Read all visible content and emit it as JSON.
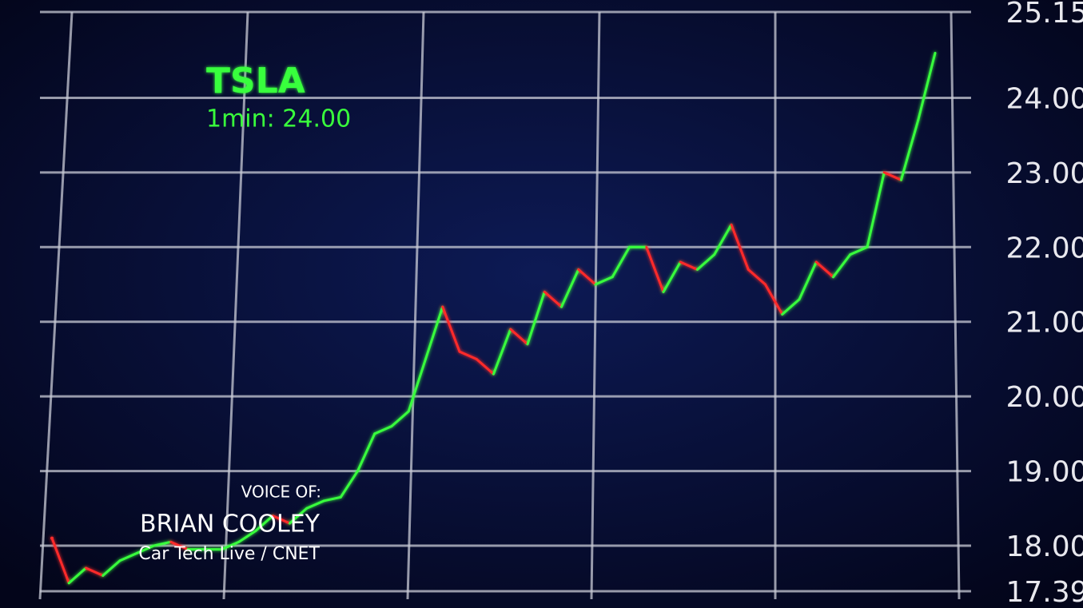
{
  "chart_data": {
    "type": "line",
    "title": "TSLA",
    "subtitle": "1min: 24.00",
    "annotations": [
      "VOICE OF:",
      "BRIAN COOLEY",
      "Car Tech Live / CNET"
    ],
    "series": [
      {
        "name": "TSLA",
        "color": "#39ff3c",
        "down_color": "#ff2a2a",
        "values": [
          18.1,
          17.5,
          17.7,
          17.6,
          17.8,
          17.9,
          18.0,
          18.05,
          17.95,
          17.95,
          17.95,
          18.05,
          18.2,
          18.4,
          18.3,
          18.5,
          18.6,
          18.65,
          19.0,
          19.5,
          19.6,
          19.8,
          20.5,
          21.2,
          20.6,
          20.5,
          20.3,
          20.9,
          20.7,
          21.4,
          21.2,
          21.7,
          21.5,
          21.6,
          22.0,
          22.0,
          21.4,
          21.8,
          21.7,
          21.9,
          22.3,
          21.7,
          21.5,
          21.1,
          21.3,
          21.8,
          21.6,
          21.9,
          22.0,
          23.0,
          22.9,
          23.7,
          24.6
        ]
      }
    ],
    "ylim": [
      17.39,
      25.15
    ],
    "yticks": [
      {
        "value": 17.39,
        "label": "17.39"
      },
      {
        "value": 18,
        "label": "18.00"
      },
      {
        "value": 19,
        "label": "19.00"
      },
      {
        "value": 20,
        "label": "20.00"
      },
      {
        "value": 21,
        "label": "21.00"
      },
      {
        "value": 22,
        "label": "22.00"
      },
      {
        "value": 23,
        "label": "23.00"
      },
      {
        "value": 24,
        "label": "24.00"
      },
      {
        "value": 25.15,
        "label": "25.15"
      }
    ],
    "grid": true
  }
}
